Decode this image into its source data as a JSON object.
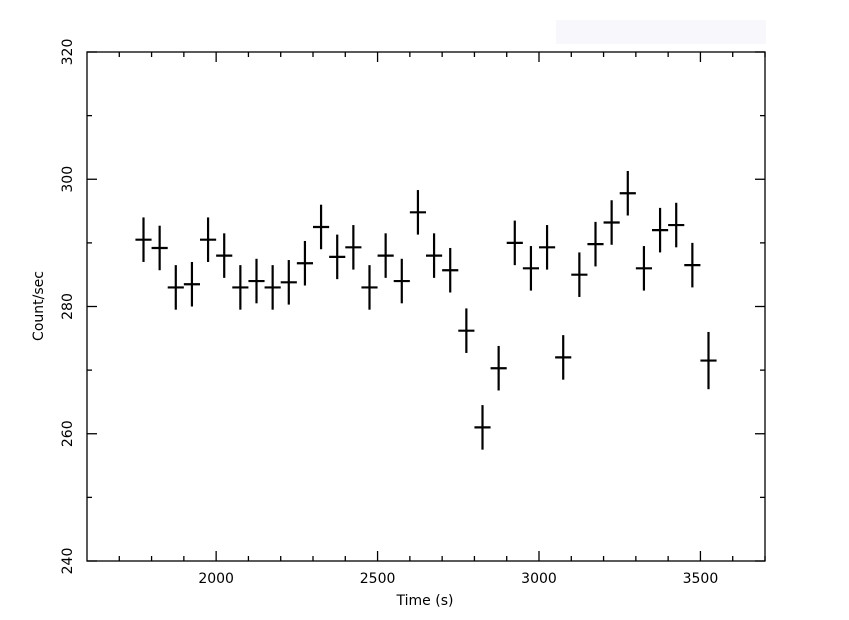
{
  "chart_data": {
    "type": "scatter",
    "title": "",
    "xlabel": "Time (s)",
    "ylabel": "Count/sec",
    "xlim": [
      1600,
      3700
    ],
    "ylim": [
      240,
      320
    ],
    "xticks": [
      2000,
      2500,
      3000,
      3500
    ],
    "yticks": [
      240,
      260,
      280,
      300,
      320
    ],
    "xtick_labels": [
      "2000",
      "2500",
      "3000",
      "3500"
    ],
    "ytick_labels": [
      "240",
      "260",
      "280",
      "300",
      "320"
    ],
    "grid": false,
    "x_half_width": 25,
    "points": [
      {
        "x": 1775,
        "y": 290.5,
        "err": 3.5
      },
      {
        "x": 1825,
        "y": 289.2,
        "err": 3.5
      },
      {
        "x": 1875,
        "y": 283.0,
        "err": 3.5
      },
      {
        "x": 1925,
        "y": 283.5,
        "err": 3.5
      },
      {
        "x": 1975,
        "y": 290.5,
        "err": 3.5
      },
      {
        "x": 2025,
        "y": 288.0,
        "err": 3.5
      },
      {
        "x": 2075,
        "y": 283.0,
        "err": 3.5
      },
      {
        "x": 2125,
        "y": 284.0,
        "err": 3.5
      },
      {
        "x": 2175,
        "y": 283.0,
        "err": 3.5
      },
      {
        "x": 2225,
        "y": 283.8,
        "err": 3.5
      },
      {
        "x": 2275,
        "y": 286.8,
        "err": 3.5
      },
      {
        "x": 2325,
        "y": 292.5,
        "err": 3.5
      },
      {
        "x": 2375,
        "y": 287.8,
        "err": 3.5
      },
      {
        "x": 2425,
        "y": 289.3,
        "err": 3.5
      },
      {
        "x": 2475,
        "y": 283.0,
        "err": 3.5
      },
      {
        "x": 2525,
        "y": 288.0,
        "err": 3.5
      },
      {
        "x": 2575,
        "y": 284.0,
        "err": 3.5
      },
      {
        "x": 2625,
        "y": 294.8,
        "err": 3.5
      },
      {
        "x": 2675,
        "y": 288.0,
        "err": 3.5
      },
      {
        "x": 2725,
        "y": 285.7,
        "err": 3.5
      },
      {
        "x": 2775,
        "y": 276.2,
        "err": 3.5
      },
      {
        "x": 2825,
        "y": 261.0,
        "err": 3.5
      },
      {
        "x": 2875,
        "y": 270.3,
        "err": 3.5
      },
      {
        "x": 2925,
        "y": 290.0,
        "err": 3.5
      },
      {
        "x": 2975,
        "y": 286.0,
        "err": 3.5
      },
      {
        "x": 3025,
        "y": 289.3,
        "err": 3.5
      },
      {
        "x": 3075,
        "y": 272.0,
        "err": 3.5
      },
      {
        "x": 3125,
        "y": 285.0,
        "err": 3.5
      },
      {
        "x": 3175,
        "y": 289.8,
        "err": 3.5
      },
      {
        "x": 3225,
        "y": 293.2,
        "err": 3.5
      },
      {
        "x": 3275,
        "y": 297.8,
        "err": 3.5
      },
      {
        "x": 3325,
        "y": 286.0,
        "err": 3.5
      },
      {
        "x": 3375,
        "y": 292.0,
        "err": 3.5
      },
      {
        "x": 3425,
        "y": 292.8,
        "err": 3.5
      },
      {
        "x": 3475,
        "y": 286.5,
        "err": 3.5
      },
      {
        "x": 3525,
        "y": 271.5,
        "err": 4.5
      }
    ]
  },
  "colors": {
    "background": "#ffffff",
    "axes": "#000000",
    "data": "#000000",
    "corner_box": "#f7f7fc"
  }
}
